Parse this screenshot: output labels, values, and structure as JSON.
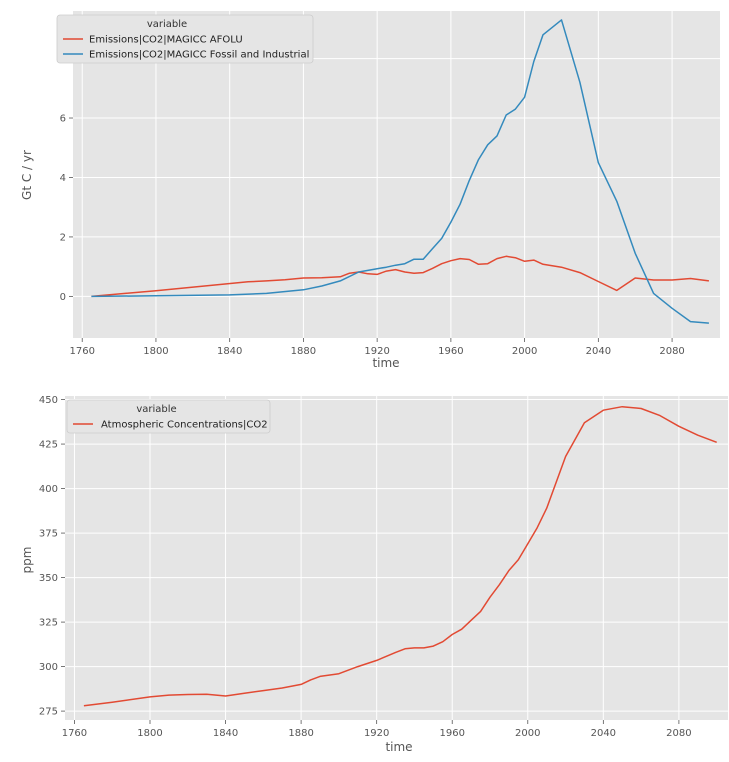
{
  "chart_data": [
    {
      "type": "line",
      "xlabel": "time",
      "ylabel": "Gt C / yr",
      "xlim": [
        1755,
        2106
      ],
      "ylim": [
        -1.4,
        9.6
      ],
      "x_ticks": [
        1760,
        1800,
        1840,
        1880,
        1920,
        1960,
        2000,
        2040,
        2080
      ],
      "y_ticks": [
        0,
        2,
        4,
        6,
        8
      ],
      "grid": true,
      "legend": {
        "title": "variable",
        "placement": "top-left"
      },
      "series": [
        {
          "name": "Emissions|CO2|MAGICC AFOLU",
          "color": "#e24a33",
          "x": [
            1765,
            1800,
            1850,
            1860,
            1870,
            1880,
            1890,
            1900,
            1905,
            1910,
            1915,
            1920,
            1925,
            1930,
            1935,
            1940,
            1945,
            1950,
            1955,
            1960,
            1965,
            1970,
            1975,
            1980,
            1985,
            1990,
            1995,
            2000,
            2005,
            2010,
            2020,
            2030,
            2040,
            2050,
            2060,
            2070,
            2080,
            2090,
            2100
          ],
          "y": [
            0.0,
            0.19,
            0.49,
            0.52,
            0.56,
            0.62,
            0.63,
            0.66,
            0.78,
            0.82,
            0.76,
            0.74,
            0.85,
            0.9,
            0.82,
            0.78,
            0.8,
            0.94,
            1.1,
            1.2,
            1.27,
            1.24,
            1.08,
            1.1,
            1.27,
            1.35,
            1.3,
            1.18,
            1.22,
            1.08,
            0.98,
            0.8,
            0.5,
            0.2,
            0.62,
            0.55,
            0.55,
            0.6,
            0.52
          ]
        },
        {
          "name": "Emissions|CO2|MAGICC Fossil and Industrial",
          "color": "#348abd",
          "x": [
            1765,
            1800,
            1840,
            1860,
            1880,
            1890,
            1900,
            1910,
            1920,
            1925,
            1930,
            1935,
            1940,
            1945,
            1950,
            1955,
            1960,
            1965,
            1970,
            1975,
            1980,
            1985,
            1990,
            1995,
            2000,
            2005,
            2010,
            2020,
            2030,
            2040,
            2050,
            2060,
            2070,
            2080,
            2090,
            2100
          ],
          "y": [
            0.0,
            0.02,
            0.05,
            0.1,
            0.22,
            0.35,
            0.52,
            0.82,
            0.93,
            0.98,
            1.05,
            1.1,
            1.25,
            1.25,
            1.6,
            1.95,
            2.5,
            3.1,
            3.9,
            4.6,
            5.1,
            5.4,
            6.1,
            6.3,
            6.7,
            7.9,
            8.8,
            9.3,
            7.2,
            4.5,
            3.2,
            1.45,
            0.1,
            -0.4,
            -0.85,
            -0.9
          ]
        }
      ]
    },
    {
      "type": "line",
      "xlabel": "time",
      "ylabel": "ppm",
      "xlim": [
        1755,
        2106
      ],
      "ylim": [
        270,
        452
      ],
      "x_ticks": [
        1760,
        1800,
        1840,
        1880,
        1920,
        1960,
        2000,
        2040,
        2080
      ],
      "y_ticks": [
        275,
        300,
        325,
        350,
        375,
        400,
        425,
        450
      ],
      "grid": true,
      "legend": {
        "title": "variable",
        "placement": "top-left"
      },
      "series": [
        {
          "name": "Atmospheric Concentrations|CO2",
          "color": "#e24a33",
          "x": [
            1765,
            1780,
            1800,
            1810,
            1820,
            1830,
            1840,
            1850,
            1860,
            1870,
            1880,
            1885,
            1890,
            1900,
            1910,
            1920,
            1930,
            1935,
            1940,
            1945,
            1950,
            1955,
            1960,
            1965,
            1970,
            1975,
            1980,
            1985,
            1990,
            1995,
            2000,
            2005,
            2010,
            2020,
            2030,
            2040,
            2050,
            2060,
            2070,
            2080,
            2090,
            2100
          ],
          "y": [
            278,
            280,
            283,
            284,
            284.3,
            284.5,
            283.5,
            285,
            286.5,
            288,
            290,
            292.5,
            294.5,
            296,
            300,
            303.5,
            308,
            310,
            310.5,
            310.5,
            311.5,
            314,
            318,
            321,
            326,
            331,
            339,
            346,
            354,
            360,
            369,
            378,
            389,
            418,
            437,
            444,
            446,
            445,
            441,
            435,
            430,
            426
          ]
        }
      ]
    }
  ]
}
